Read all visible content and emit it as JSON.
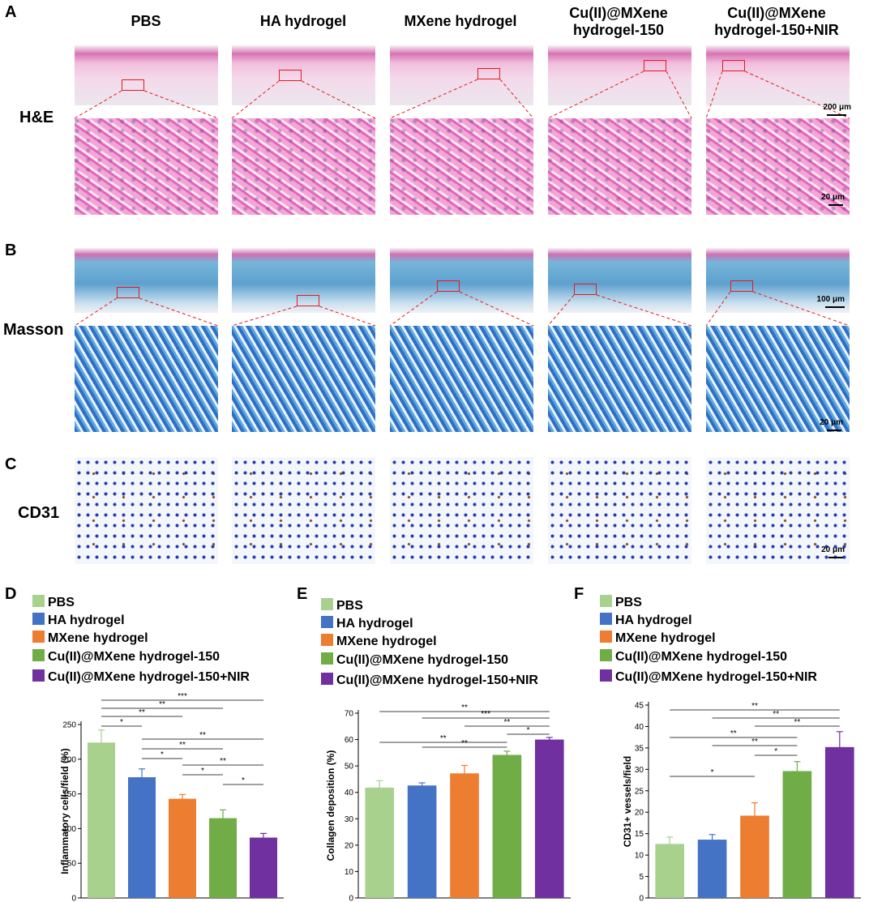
{
  "panel_letters": {
    "a": "A",
    "b": "B",
    "c": "C",
    "d": "D",
    "e": "E",
    "f": "F"
  },
  "row_labels": {
    "he": "H&E",
    "masson": "Masson",
    "cd31": "CD31"
  },
  "columns": [
    {
      "line1": "PBS",
      "line2": ""
    },
    {
      "line1": "HA hydrogel",
      "line2": ""
    },
    {
      "line1": "MXene hydrogel",
      "line2": ""
    },
    {
      "line1": "Cu(II)@MXene",
      "line2": "hydrogel-150"
    },
    {
      "line1": "Cu(II)@MXene",
      "line2": "hydrogel-150+NIR"
    }
  ],
  "scale_bars": {
    "he_overview": "200 μm",
    "he_zoom": "20 μm",
    "masson_overview": "100 μm",
    "masson_zoom": "20 μm",
    "cd31": "20 μm"
  },
  "legend": [
    "PBS",
    "HA hydrogel",
    "MXene hydrogel",
    "Cu(II)@MXene hydrogel-150",
    "Cu(II)@MXene hydrogel-150+NIR"
  ],
  "colors": [
    "#a9d18e",
    "#4472c4",
    "#ed7d31",
    "#70ad47",
    "#7030a0"
  ],
  "chart_data": [
    {
      "type": "bar",
      "panel": "D",
      "categories": [
        "PBS",
        "HA hydrogel",
        "MXene hydrogel",
        "Cu(II)@MXene hydrogel-150",
        "Cu(II)@MXene hydrogel-150+NIR"
      ],
      "values": [
        224,
        174,
        143,
        115,
        87
      ],
      "errors": [
        18,
        12,
        6,
        12,
        6
      ],
      "ylabel": "Inflammatory cells/field (%)",
      "ylim": [
        0,
        250
      ],
      "yticks": [
        "0",
        "50",
        "100",
        "150",
        "200",
        "250"
      ],
      "significance": [
        {
          "from": 0,
          "to": 1,
          "label": "*"
        },
        {
          "from": 0,
          "to": 2,
          "label": "**"
        },
        {
          "from": 0,
          "to": 3,
          "label": "**"
        },
        {
          "from": 0,
          "to": 4,
          "label": "***"
        },
        {
          "from": 1,
          "to": 2,
          "label": "*"
        },
        {
          "from": 1,
          "to": 3,
          "label": "**"
        },
        {
          "from": 1,
          "to": 4,
          "label": "**"
        },
        {
          "from": 2,
          "to": 3,
          "label": "*"
        },
        {
          "from": 2,
          "to": 4,
          "label": "**"
        },
        {
          "from": 3,
          "to": 4,
          "label": "*"
        }
      ]
    },
    {
      "type": "bar",
      "panel": "E",
      "categories": [
        "PBS",
        "HA hydrogel",
        "MXene hydrogel",
        "Cu(II)@MXene hydrogel-150",
        "Cu(II)@MXene hydrogel-150+NIR"
      ],
      "values": [
        41.8,
        42.6,
        47.2,
        54.2,
        60.0
      ],
      "errors": [
        2.6,
        1.0,
        3.0,
        1.4,
        0.8
      ],
      "ylabel": "Collagen deposition (%)",
      "ylim": [
        0,
        70
      ],
      "yticks": [
        "0",
        "10",
        "20",
        "30",
        "40",
        "50",
        "60",
        "70"
      ],
      "significance": [
        {
          "from": 3,
          "to": 4,
          "label": "*"
        },
        {
          "from": 2,
          "to": 4,
          "label": "**"
        },
        {
          "from": 1,
          "to": 4,
          "label": "***"
        },
        {
          "from": 0,
          "to": 4,
          "label": "**"
        },
        {
          "from": 1,
          "to": 3,
          "label": "**"
        },
        {
          "from": 0,
          "to": 3,
          "label": "**"
        }
      ]
    },
    {
      "type": "bar",
      "panel": "F",
      "categories": [
        "PBS",
        "HA hydrogel",
        "MXene hydrogel",
        "Cu(II)@MXene hydrogel-150",
        "Cu(II)@MXene hydrogel-150+NIR"
      ],
      "values": [
        12.6,
        13.6,
        19.2,
        29.6,
        35.2
      ],
      "errors": [
        1.6,
        1.2,
        3.0,
        2.2,
        3.6
      ],
      "ylabel": "CD31+ vessels/field",
      "ylim": [
        0,
        45
      ],
      "yticks": [
        "0",
        "5",
        "10",
        "15",
        "20",
        "25",
        "30",
        "35",
        "40",
        "45"
      ],
      "significance": [
        {
          "from": 0,
          "to": 2,
          "label": "*"
        },
        {
          "from": 2,
          "to": 3,
          "label": "*"
        },
        {
          "from": 1,
          "to": 3,
          "label": "**"
        },
        {
          "from": 0,
          "to": 3,
          "label": "**"
        },
        {
          "from": 2,
          "to": 4,
          "label": "**"
        },
        {
          "from": 1,
          "to": 4,
          "label": "**"
        },
        {
          "from": 0,
          "to": 4,
          "label": "**"
        }
      ]
    }
  ]
}
